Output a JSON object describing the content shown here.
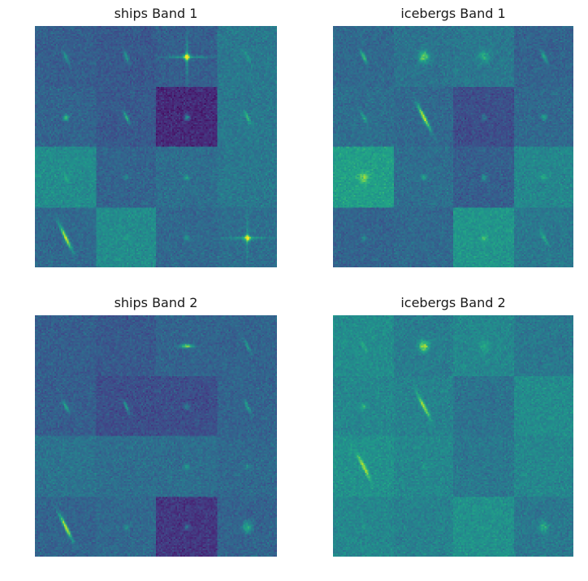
{
  "panels": [
    {
      "title": "ships Band 1",
      "grid": [
        4,
        4
      ],
      "colormap": "viridis",
      "tiles": [
        {
          "bg": 0.3,
          "target": 0.55,
          "shape": "streak"
        },
        {
          "bg": 0.28,
          "target": 0.55,
          "shape": "streak"
        },
        {
          "bg": 0.3,
          "target": 1.0,
          "shape": "cross"
        },
        {
          "bg": 0.4,
          "target": 0.55,
          "shape": "streak"
        },
        {
          "bg": 0.32,
          "target": 0.7,
          "shape": "dot"
        },
        {
          "bg": 0.28,
          "target": 0.65,
          "shape": "streak"
        },
        {
          "bg": 0.12,
          "target": 0.55,
          "shape": "dot"
        },
        {
          "bg": 0.4,
          "target": 0.7,
          "shape": "streak"
        },
        {
          "bg": 0.48,
          "target": 0.6,
          "shape": "streak"
        },
        {
          "bg": 0.32,
          "target": 0.5,
          "shape": "dot"
        },
        {
          "bg": 0.36,
          "target": 0.6,
          "shape": "dot"
        },
        {
          "bg": 0.4,
          "target": 0.45,
          "shape": "none"
        },
        {
          "bg": 0.34,
          "target": 0.95,
          "shape": "long-streak"
        },
        {
          "bg": 0.48,
          "target": 0.55,
          "shape": "dot"
        },
        {
          "bg": 0.34,
          "target": 0.55,
          "shape": "dot"
        },
        {
          "bg": 0.36,
          "target": 0.95,
          "shape": "cross"
        }
      ]
    },
    {
      "title": "icebergs Band 1",
      "grid": [
        4,
        4
      ],
      "colormap": "viridis",
      "tiles": [
        {
          "bg": 0.34,
          "target": 0.7,
          "shape": "streak"
        },
        {
          "bg": 0.38,
          "target": 0.85,
          "shape": "blob"
        },
        {
          "bg": 0.4,
          "target": 0.65,
          "shape": "blob"
        },
        {
          "bg": 0.32,
          "target": 0.6,
          "shape": "streak"
        },
        {
          "bg": 0.36,
          "target": 0.6,
          "shape": "streak"
        },
        {
          "bg": 0.34,
          "target": 0.95,
          "shape": "long-streak"
        },
        {
          "bg": 0.24,
          "target": 0.4,
          "shape": "dot"
        },
        {
          "bg": 0.34,
          "target": 0.6,
          "shape": "dot"
        },
        {
          "bg": 0.56,
          "target": 0.85,
          "shape": "blob"
        },
        {
          "bg": 0.36,
          "target": 0.6,
          "shape": "dot"
        },
        {
          "bg": 0.3,
          "target": 0.55,
          "shape": "dot"
        },
        {
          "bg": 0.46,
          "target": 0.65,
          "shape": "dot"
        },
        {
          "bg": 0.32,
          "target": 0.5,
          "shape": "dot"
        },
        {
          "bg": 0.34,
          "target": 0.45,
          "shape": "none"
        },
        {
          "bg": 0.52,
          "target": 0.75,
          "shape": "dot"
        },
        {
          "bg": 0.4,
          "target": 0.65,
          "shape": "streak"
        }
      ]
    },
    {
      "title": "ships Band 2",
      "grid": [
        4,
        4
      ],
      "colormap": "viridis",
      "tiles": [
        {
          "bg": 0.3,
          "target": 0.4,
          "shape": "none"
        },
        {
          "bg": 0.28,
          "target": 0.4,
          "shape": "none"
        },
        {
          "bg": 0.32,
          "target": 0.85,
          "shape": "horizontal"
        },
        {
          "bg": 0.32,
          "target": 0.55,
          "shape": "streak"
        },
        {
          "bg": 0.3,
          "target": 0.6,
          "shape": "streak"
        },
        {
          "bg": 0.24,
          "target": 0.55,
          "shape": "streak"
        },
        {
          "bg": 0.24,
          "target": 0.45,
          "shape": "dot"
        },
        {
          "bg": 0.32,
          "target": 0.6,
          "shape": "streak"
        },
        {
          "bg": 0.38,
          "target": 0.45,
          "shape": "none"
        },
        {
          "bg": 0.36,
          "target": 0.45,
          "shape": "none"
        },
        {
          "bg": 0.36,
          "target": 0.55,
          "shape": "dot"
        },
        {
          "bg": 0.34,
          "target": 0.5,
          "shape": "dot"
        },
        {
          "bg": 0.32,
          "target": 0.95,
          "shape": "long-streak"
        },
        {
          "bg": 0.34,
          "target": 0.55,
          "shape": "dot"
        },
        {
          "bg": 0.16,
          "target": 0.4,
          "shape": "dot"
        },
        {
          "bg": 0.32,
          "target": 0.65,
          "shape": "blob"
        }
      ]
    },
    {
      "title": "icebergs Band 2",
      "grid": [
        4,
        4
      ],
      "colormap": "viridis",
      "tiles": [
        {
          "bg": 0.48,
          "target": 0.65,
          "shape": "streak"
        },
        {
          "bg": 0.42,
          "target": 0.9,
          "shape": "blob"
        },
        {
          "bg": 0.46,
          "target": 0.6,
          "shape": "blob"
        },
        {
          "bg": 0.4,
          "target": 0.45,
          "shape": "none"
        },
        {
          "bg": 0.46,
          "target": 0.65,
          "shape": "dot"
        },
        {
          "bg": 0.44,
          "target": 0.9,
          "shape": "long-streak"
        },
        {
          "bg": 0.38,
          "target": 0.45,
          "shape": "none"
        },
        {
          "bg": 0.48,
          "target": 0.5,
          "shape": "none"
        },
        {
          "bg": 0.5,
          "target": 0.9,
          "shape": "long-streak"
        },
        {
          "bg": 0.46,
          "target": 0.55,
          "shape": "dot"
        },
        {
          "bg": 0.4,
          "target": 0.45,
          "shape": "none"
        },
        {
          "bg": 0.46,
          "target": 0.5,
          "shape": "none"
        },
        {
          "bg": 0.46,
          "target": 0.55,
          "shape": "dot"
        },
        {
          "bg": 0.44,
          "target": 0.5,
          "shape": "none"
        },
        {
          "bg": 0.5,
          "target": 0.55,
          "shape": "dot"
        },
        {
          "bg": 0.4,
          "target": 0.65,
          "shape": "blob"
        }
      ]
    }
  ]
}
